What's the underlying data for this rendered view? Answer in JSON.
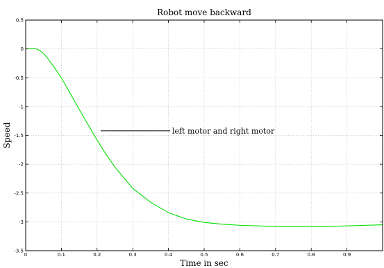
{
  "chart_data": {
    "type": "line",
    "title": "Robot move backward",
    "xlabel": "Time in sec",
    "ylabel": "Speed",
    "xlim": [
      0,
      1
    ],
    "ylim": [
      -3.5,
      0.5
    ],
    "grid": true,
    "x_ticks": [
      0,
      0.1,
      0.2,
      0.3,
      0.4,
      0.5,
      0.6,
      0.7,
      0.8,
      0.9
    ],
    "x_tick_labels": [
      "0",
      "0.1",
      "0.2",
      "0.3",
      "0.4",
      "0.5",
      "0.6",
      "0.7",
      "0.8",
      "0.9"
    ],
    "y_ticks": [
      0.5,
      0,
      -0.5,
      -1,
      -1.5,
      -2,
      -2.5,
      -3,
      -3.5
    ],
    "y_tick_labels": [
      "0.5",
      "0",
      "-0.5",
      "-1",
      "-1.5",
      "-2",
      "-2.5",
      "-3",
      "-3.5"
    ],
    "series": [
      {
        "color": "#00dd00",
        "x": [
          0,
          0.01,
          0.02,
          0.03,
          0.04,
          0.05,
          0.06,
          0.08,
          0.1,
          0.12,
          0.15,
          0.18,
          0.2,
          0.22,
          0.25,
          0.3,
          0.35,
          0.4,
          0.45,
          0.5,
          0.55,
          0.6,
          0.65,
          0.7,
          0.75,
          0.8,
          0.85,
          0.9,
          0.95,
          1.0
        ],
        "y": [
          0,
          0.0,
          0.01,
          0.0,
          -0.03,
          -0.08,
          -0.15,
          -0.32,
          -0.5,
          -0.72,
          -1.05,
          -1.37,
          -1.58,
          -1.78,
          -2.05,
          -2.42,
          -2.66,
          -2.84,
          -2.95,
          -3.01,
          -3.04,
          -3.06,
          -3.07,
          -3.08,
          -3.08,
          -3.08,
          -3.08,
          -3.07,
          -3.06,
          -3.05
        ]
      }
    ],
    "annotation": {
      "text": "left motor and right motor",
      "point": [
        0.21,
        -1.42
      ]
    }
  }
}
